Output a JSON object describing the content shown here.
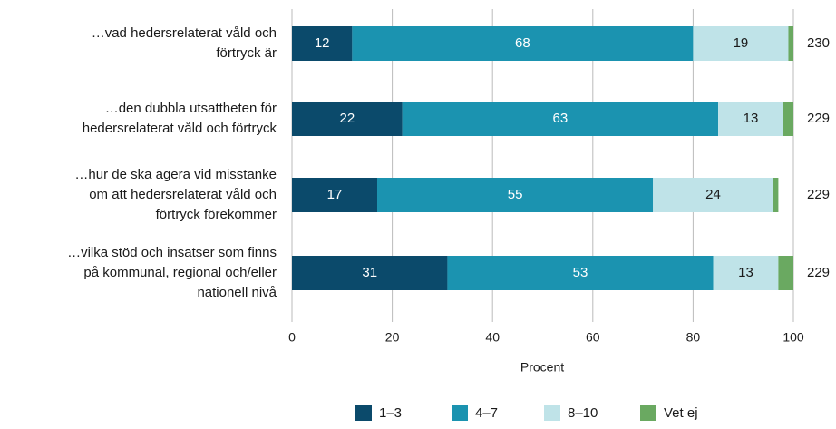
{
  "chart_data": {
    "type": "stacked-barh",
    "categories": [
      [
        "…vad hedersrelaterat våld och",
        "förtryck är"
      ],
      [
        "…den dubbla utsattheten för",
        "hedersrelaterat våld och förtryck"
      ],
      [
        "…hur de ska agera vid misstanke",
        "om att hedersrelaterat våld och",
        "förtryck förekommer"
      ],
      [
        "…vilka stöd och insatser som finns",
        "på kommunal, regional och/eller",
        "nationell nivå"
      ]
    ],
    "series": [
      {
        "name": "1–3",
        "color": "#0b4a6b",
        "values": [
          12,
          22,
          17,
          31
        ]
      },
      {
        "name": "4–7",
        "color": "#1b93b0",
        "values": [
          68,
          63,
          55,
          53
        ]
      },
      {
        "name": "8–10",
        "color": "#bfe3e8",
        "values": [
          19,
          13,
          24,
          13
        ]
      },
      {
        "name": "Vet ej",
        "color": "#6aa961",
        "values": [
          1,
          2,
          1,
          3
        ]
      }
    ],
    "n": [
      230,
      229,
      229,
      229
    ],
    "xlabel": "Procent",
    "xlim": [
      0,
      100
    ],
    "xticks": [
      0,
      20,
      40,
      60,
      80,
      100
    ],
    "grid": true
  }
}
